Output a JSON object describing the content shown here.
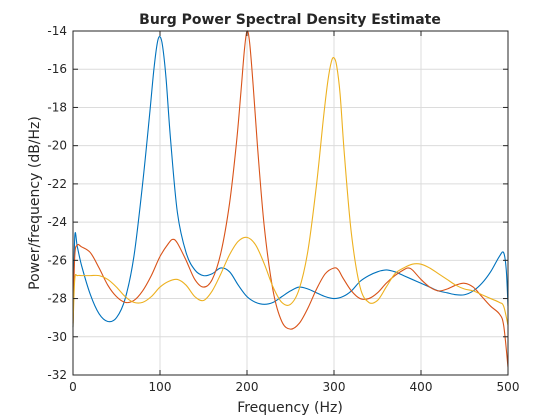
{
  "chart_data": {
    "type": "line",
    "title": "Burg Power Spectral Density Estimate",
    "xlabel": "Frequency (Hz)",
    "ylabel": "Power/frequency (dB/Hz)",
    "xlim": [
      0,
      500
    ],
    "ylim": [
      -32,
      -14
    ],
    "xticks": [
      0,
      100,
      200,
      300,
      400,
      500
    ],
    "yticks": [
      -32,
      -30,
      -28,
      -26,
      -24,
      -22,
      -20,
      -18,
      -16,
      -14
    ],
    "grid": true,
    "legend": "none",
    "series": [
      {
        "color": "#0072BD",
        "x": [
          0,
          2,
          5,
          10,
          20,
          30,
          40,
          50,
          60,
          70,
          80,
          88,
          93,
          97,
          100,
          103,
          107,
          112,
          120,
          130,
          140,
          150,
          160,
          170,
          180,
          190,
          200,
          210,
          220,
          230,
          240,
          250,
          260,
          270,
          280,
          290,
          300,
          310,
          320,
          330,
          340,
          350,
          360,
          370,
          380,
          390,
          400,
          410,
          420,
          430,
          440,
          450,
          460,
          470,
          480,
          490,
          495,
          498,
          500
        ],
        "y": [
          -29.5,
          -24.8,
          -25.3,
          -26.3,
          -27.8,
          -28.8,
          -29.2,
          -29.0,
          -28.0,
          -25.8,
          -22.0,
          -18.4,
          -16.0,
          -14.6,
          -14.3,
          -14.8,
          -16.5,
          -19.6,
          -23.5,
          -25.6,
          -26.5,
          -26.8,
          -26.7,
          -26.4,
          -26.6,
          -27.3,
          -27.9,
          -28.2,
          -28.3,
          -28.2,
          -27.9,
          -27.6,
          -27.4,
          -27.5,
          -27.7,
          -27.9,
          -28.0,
          -27.9,
          -27.6,
          -27.1,
          -26.8,
          -26.6,
          -26.5,
          -26.6,
          -26.8,
          -27.0,
          -27.2,
          -27.4,
          -27.6,
          -27.7,
          -27.8,
          -27.8,
          -27.6,
          -27.2,
          -26.6,
          -25.8,
          -25.6,
          -26.5,
          -28.4
        ]
      },
      {
        "color": "#D95319",
        "x": [
          0,
          2,
          5,
          10,
          20,
          30,
          40,
          50,
          60,
          70,
          80,
          90,
          100,
          110,
          115,
          120,
          130,
          140,
          150,
          160,
          170,
          180,
          188,
          193,
          197,
          200,
          203,
          207,
          212,
          220,
          230,
          240,
          250,
          260,
          270,
          280,
          290,
          300,
          305,
          310,
          320,
          330,
          340,
          350,
          360,
          370,
          380,
          385,
          390,
          400,
          410,
          420,
          430,
          440,
          450,
          460,
          470,
          480,
          490,
          495,
          500
        ],
        "y": [
          -29.3,
          -25.8,
          -25.2,
          -25.3,
          -25.6,
          -26.4,
          -27.3,
          -27.9,
          -28.2,
          -28.1,
          -27.6,
          -26.8,
          -25.8,
          -25.1,
          -24.9,
          -25.1,
          -26.0,
          -27.0,
          -27.4,
          -27.0,
          -25.6,
          -23.0,
          -19.8,
          -17.2,
          -15.0,
          -14.0,
          -14.6,
          -16.8,
          -20.0,
          -24.3,
          -27.6,
          -29.2,
          -29.6,
          -29.3,
          -28.5,
          -27.5,
          -26.7,
          -26.4,
          -26.5,
          -26.9,
          -27.6,
          -28.0,
          -28.0,
          -27.7,
          -27.2,
          -26.8,
          -26.5,
          -26.4,
          -26.5,
          -27.0,
          -27.4,
          -27.6,
          -27.5,
          -27.3,
          -27.2,
          -27.4,
          -27.9,
          -28.4,
          -28.8,
          -29.4,
          -31.6
        ]
      },
      {
        "color": "#EDB120",
        "x": [
          0,
          2,
          5,
          10,
          20,
          30,
          40,
          50,
          60,
          70,
          80,
          90,
          100,
          110,
          120,
          130,
          140,
          150,
          160,
          170,
          180,
          190,
          200,
          210,
          220,
          230,
          240,
          250,
          260,
          270,
          280,
          288,
          293,
          297,
          300,
          303,
          307,
          312,
          320,
          330,
          340,
          350,
          360,
          370,
          380,
          390,
          400,
          410,
          420,
          430,
          440,
          450,
          460,
          470,
          480,
          490,
          495,
          500
        ],
        "y": [
          -29.5,
          -27.0,
          -26.8,
          -26.8,
          -26.8,
          -26.8,
          -27.0,
          -27.4,
          -27.9,
          -28.2,
          -28.2,
          -27.9,
          -27.4,
          -27.1,
          -27.0,
          -27.3,
          -27.9,
          -28.1,
          -27.6,
          -26.7,
          -25.7,
          -25.0,
          -24.8,
          -25.2,
          -26.2,
          -27.4,
          -28.2,
          -28.3,
          -27.5,
          -25.5,
          -22.0,
          -18.5,
          -16.6,
          -15.6,
          -15.4,
          -15.8,
          -17.3,
          -20.5,
          -24.6,
          -27.4,
          -28.2,
          -28.1,
          -27.4,
          -26.7,
          -26.4,
          -26.2,
          -26.2,
          -26.4,
          -26.7,
          -27.0,
          -27.3,
          -27.5,
          -27.6,
          -27.8,
          -28.0,
          -28.2,
          -28.4,
          -29.4
        ]
      }
    ]
  }
}
